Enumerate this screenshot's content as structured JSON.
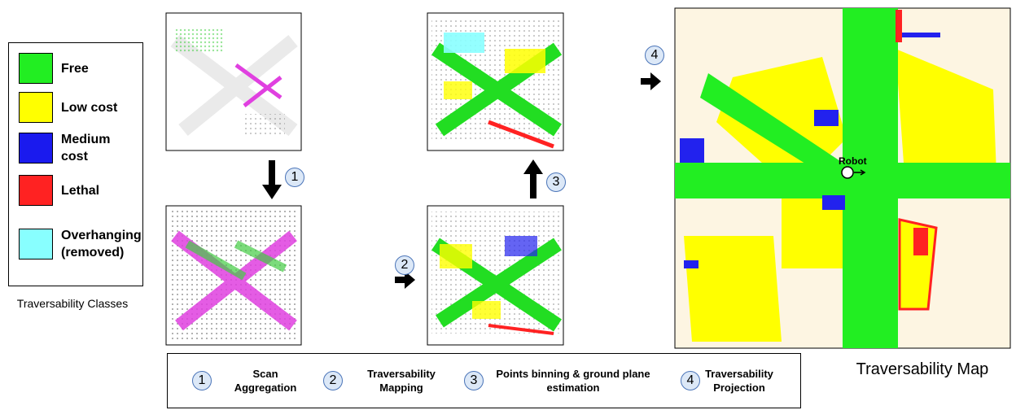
{
  "legend": {
    "items": [
      {
        "label": "Free",
        "color": "#22ee22"
      },
      {
        "label": "Low cost",
        "color": "#ffff00"
      },
      {
        "label": "Medium cost",
        "color": "#1a1aee"
      },
      {
        "label": "Lethal",
        "color": "#ff2222"
      },
      {
        "label": "Overhanging (removed)",
        "color": "#88ffff"
      }
    ],
    "caption": "Traversability Classes"
  },
  "steps": [
    {
      "number": "1",
      "label": "Scan Aggregation"
    },
    {
      "number": "2",
      "label": "Traversability Mapping"
    },
    {
      "number": "3",
      "label": "Points binning & ground plane estimation"
    },
    {
      "number": "4",
      "label": "Traversability Projection"
    }
  ],
  "map": {
    "title": "Traversability Map",
    "robot_label": "Robot"
  }
}
